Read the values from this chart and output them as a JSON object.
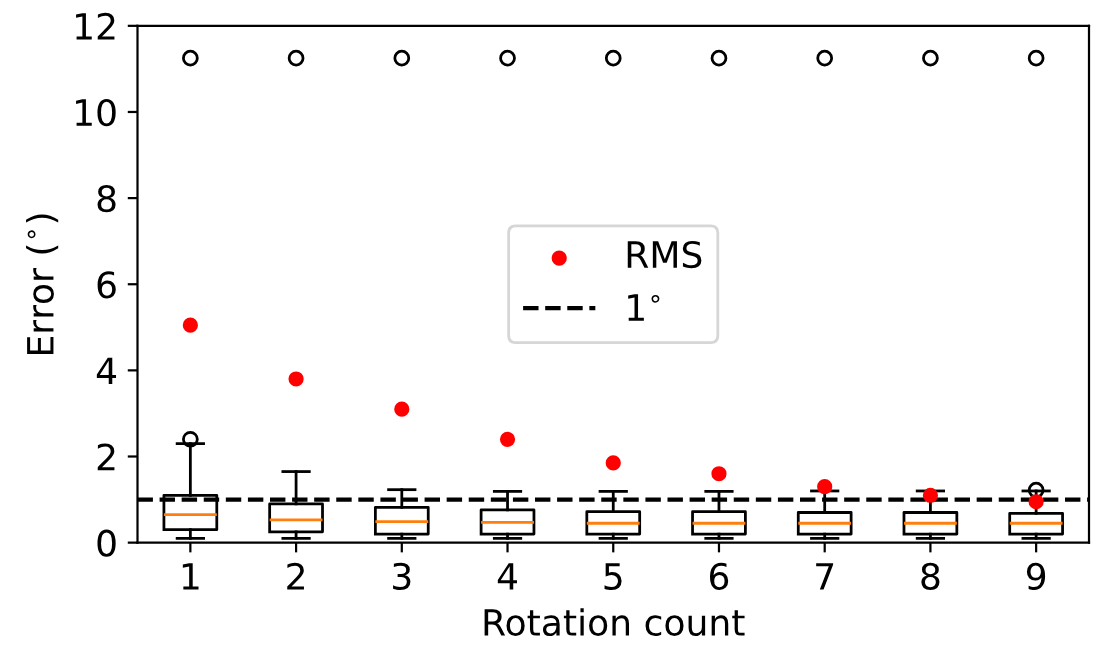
{
  "chart_data": {
    "type": "box",
    "xlabel": "Rotation count",
    "ylabel": "Error ($^{∘}$)",
    "categories": [
      "1",
      "2",
      "3",
      "4",
      "5",
      "6",
      "7",
      "8",
      "9"
    ],
    "boxes": [
      {
        "low": 0.1,
        "q1": 0.3,
        "median": 0.65,
        "q3": 1.1,
        "high": 2.3,
        "outliers": [
          2.4,
          11.25
        ]
      },
      {
        "low": 0.1,
        "q1": 0.25,
        "median": 0.53,
        "q3": 0.9,
        "high": 1.65,
        "outliers": [
          11.25
        ]
      },
      {
        "low": 0.1,
        "q1": 0.2,
        "median": 0.49,
        "q3": 0.82,
        "high": 1.23,
        "outliers": [
          11.25
        ]
      },
      {
        "low": 0.1,
        "q1": 0.2,
        "median": 0.47,
        "q3": 0.76,
        "high": 1.19,
        "outliers": [
          11.25
        ]
      },
      {
        "low": 0.1,
        "q1": 0.2,
        "median": 0.45,
        "q3": 0.72,
        "high": 1.19,
        "outliers": [
          11.25
        ]
      },
      {
        "low": 0.1,
        "q1": 0.2,
        "median": 0.45,
        "q3": 0.72,
        "high": 1.19,
        "outliers": [
          11.25
        ]
      },
      {
        "low": 0.1,
        "q1": 0.2,
        "median": 0.45,
        "q3": 0.7,
        "high": 1.2,
        "outliers": [
          11.25
        ]
      },
      {
        "low": 0.1,
        "q1": 0.2,
        "median": 0.45,
        "q3": 0.7,
        "high": 1.2,
        "outliers": [
          11.25
        ]
      },
      {
        "low": 0.1,
        "q1": 0.2,
        "median": 0.45,
        "q3": 0.68,
        "high": 1.2,
        "outliers": [
          1.22,
          11.25
        ]
      }
    ],
    "series": [
      {
        "name": "RMS",
        "type": "scatter",
        "color": "#ff0000",
        "x": [
          "1",
          "2",
          "3",
          "4",
          "5",
          "6",
          "7",
          "8",
          "9"
        ],
        "values": [
          5.05,
          3.8,
          3.1,
          2.4,
          1.85,
          1.6,
          1.3,
          1.1,
          0.95
        ]
      }
    ],
    "ref_lines": [
      {
        "axis": "y",
        "value": 1,
        "label": "1$^{∘}$",
        "color": "#000000",
        "line_style": "dashed"
      }
    ],
    "ylim": [
      0,
      12
    ],
    "yticks": [
      0,
      2,
      4,
      6,
      8,
      10,
      12
    ],
    "legend": "center",
    "grid": false,
    "marker": "circle"
  }
}
